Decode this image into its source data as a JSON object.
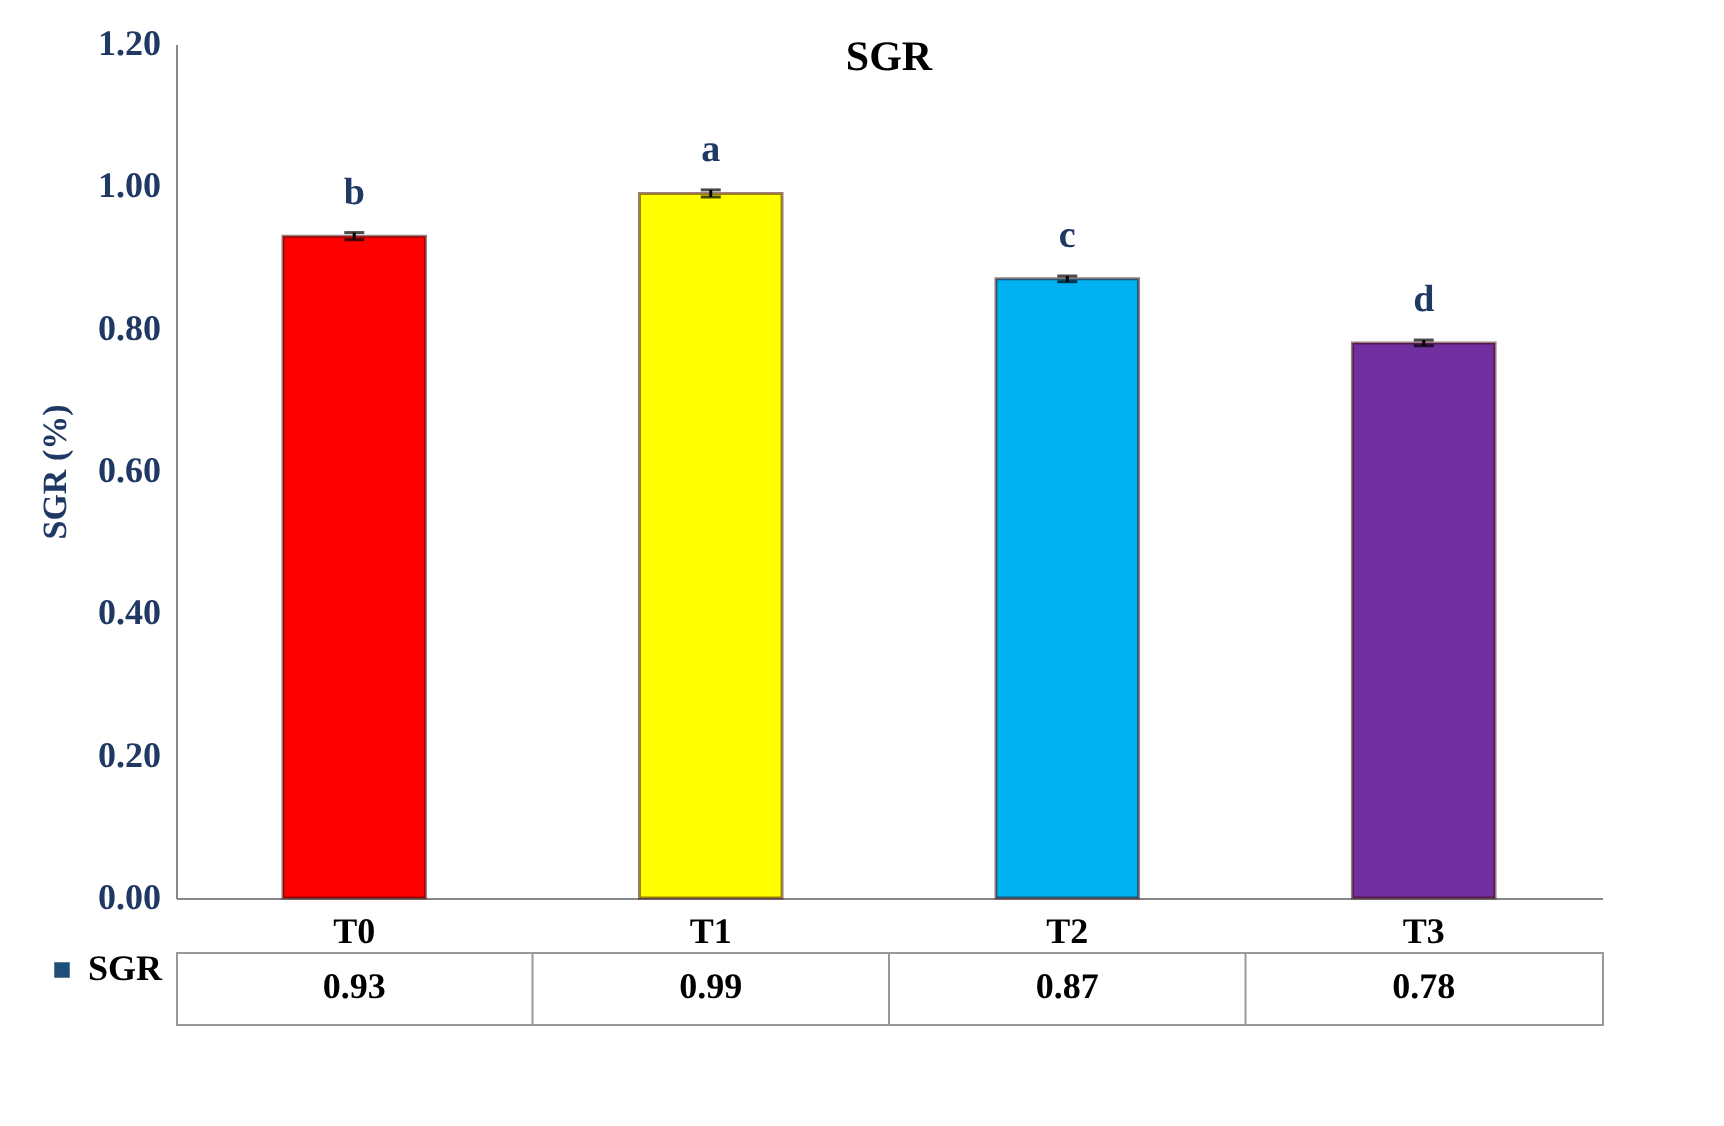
{
  "chart_data": {
    "type": "bar",
    "title": "SGR",
    "ylabel": "SGR (%)",
    "categories": [
      "T0",
      "T1",
      "T2",
      "T3"
    ],
    "series": [
      {
        "name": "SGR",
        "colors": [
          "#ff0000",
          "#ffff00",
          "#00b0f0",
          "#7030a0"
        ],
        "values": [
          0.93,
          0.99,
          0.87,
          0.78
        ],
        "errors": [
          0.005,
          0.005,
          0.004,
          0.004
        ]
      }
    ],
    "ylim": [
      0,
      1.2
    ],
    "yticks": [
      {
        "value": 0,
        "label": "0.00"
      },
      {
        "value": 0.2,
        "label": "0.20"
      },
      {
        "value": 0.4,
        "label": "0.40"
      },
      {
        "value": 0.6,
        "label": "0.60"
      },
      {
        "value": 0.8,
        "label": "0.80"
      },
      {
        "value": 1,
        "label": "1.00"
      },
      {
        "value": 1.2,
        "label": "1.20"
      }
    ],
    "data_labels": true,
    "annotations": [
      {
        "text": "b",
        "x": "T0",
        "y": 0.93
      },
      {
        "text": "a",
        "x": "T1",
        "y": 0.99
      },
      {
        "text": "c",
        "x": "T2",
        "y": 0.87
      },
      {
        "text": "d",
        "x": "T3",
        "y": 0.78
      }
    ]
  }
}
